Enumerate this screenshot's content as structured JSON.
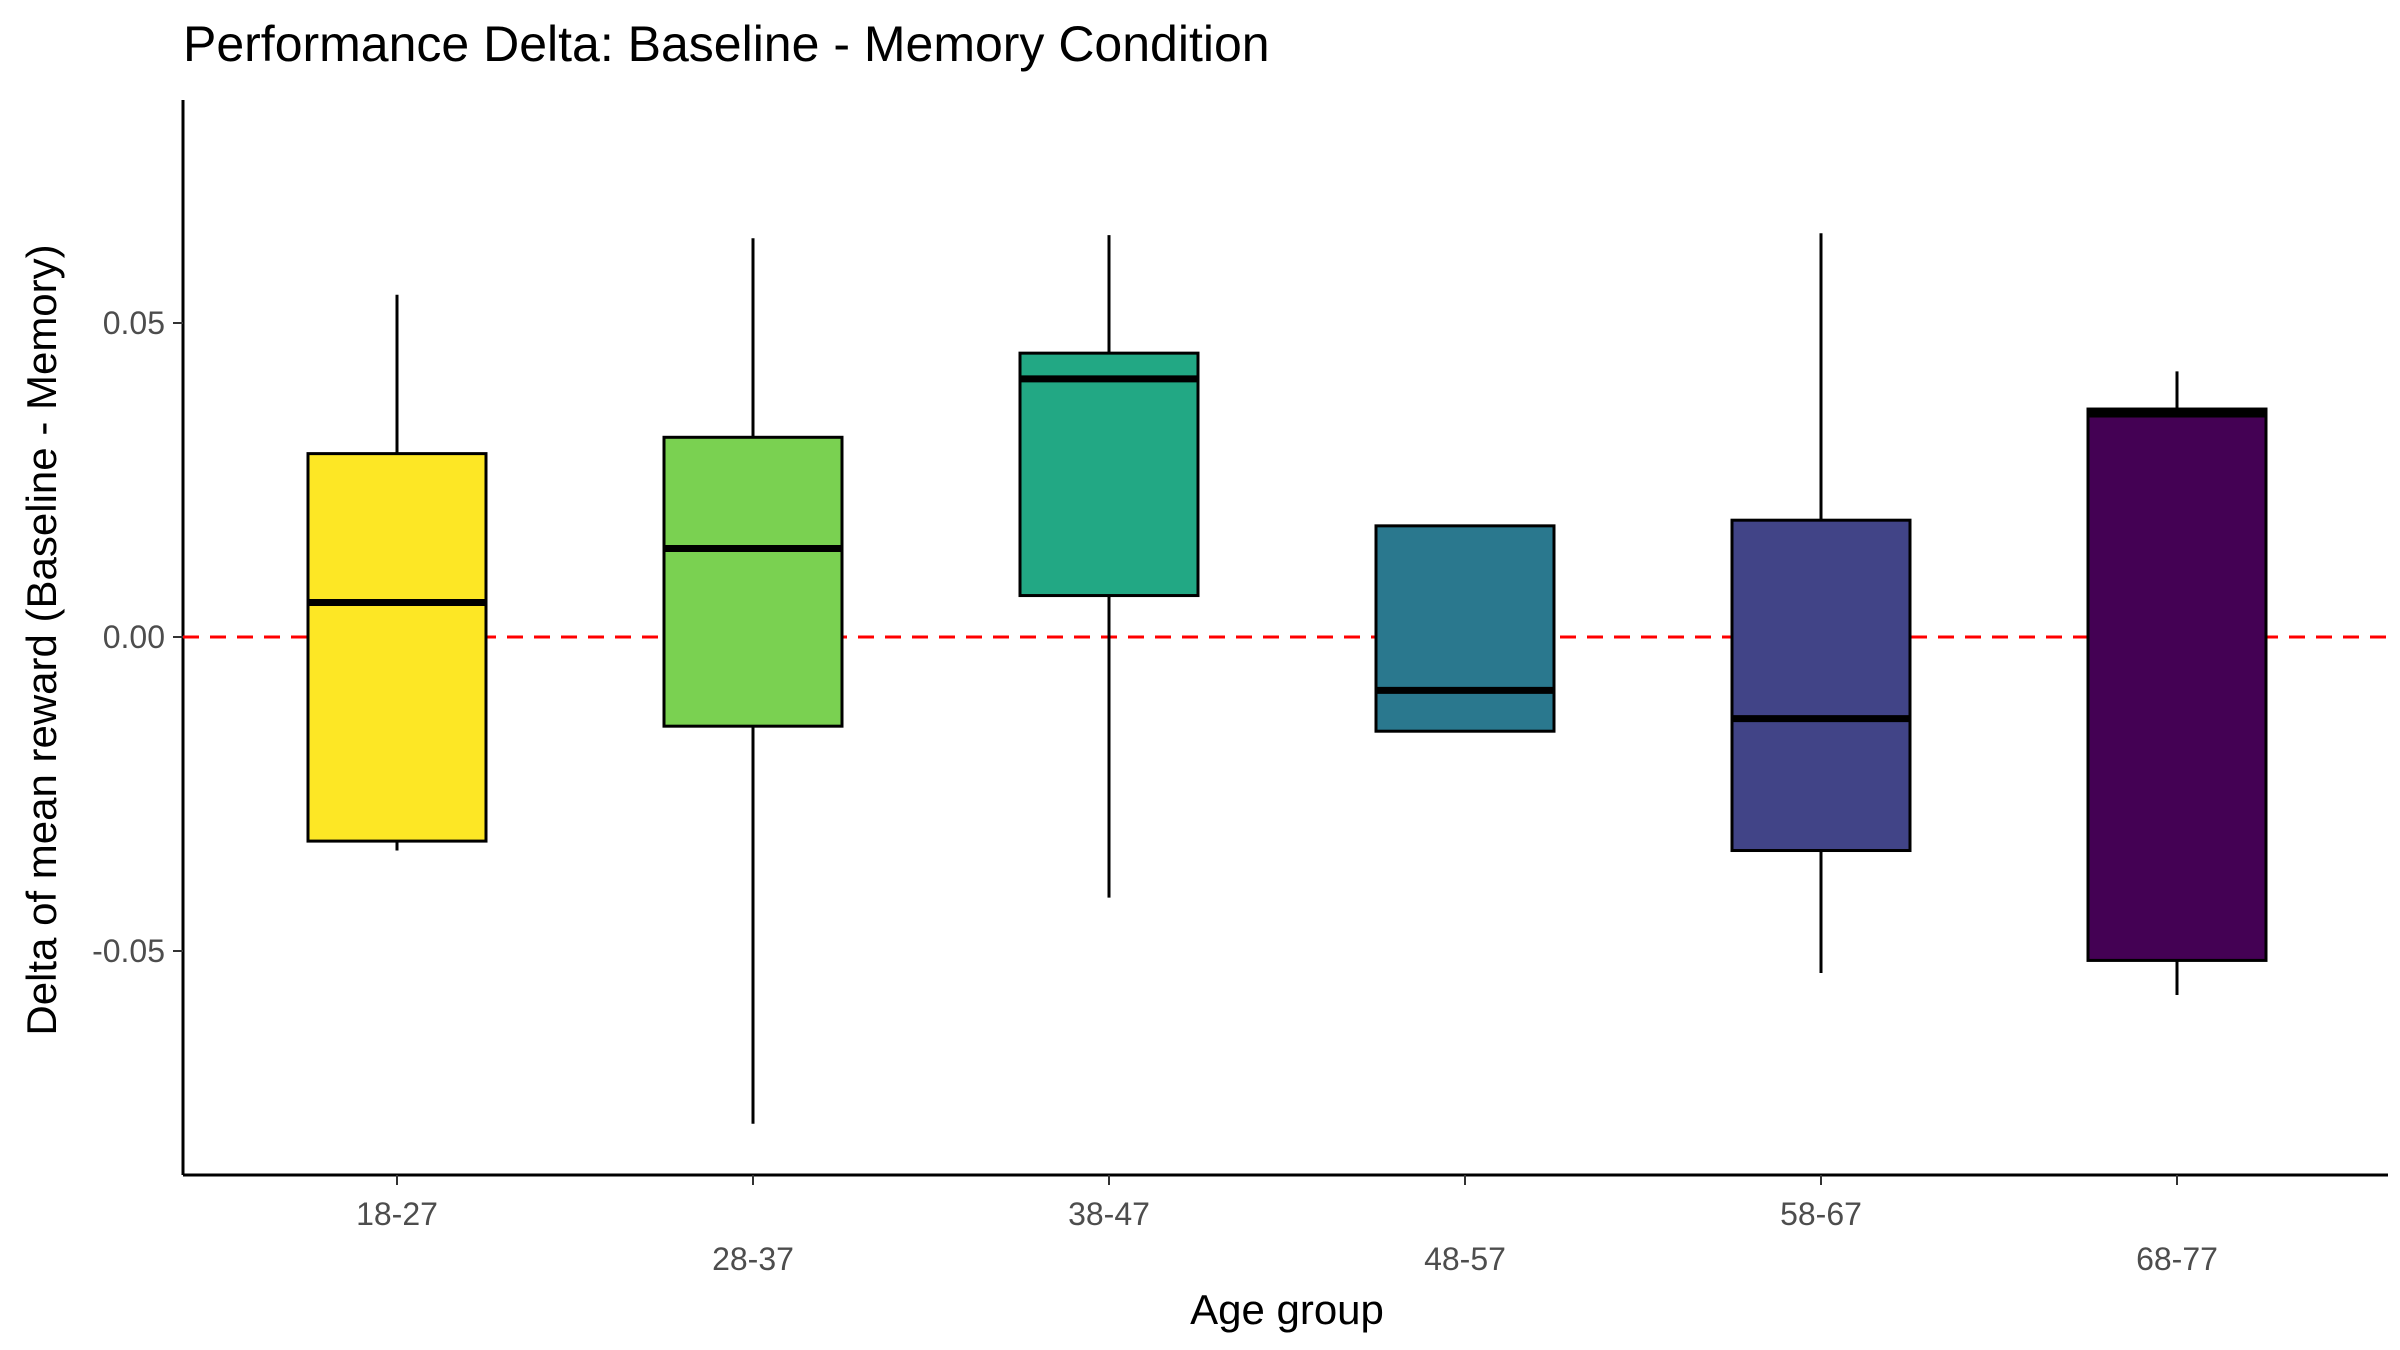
{
  "chart_data": {
    "type": "boxplot",
    "title": "Performance Delta: Baseline - Memory Condition",
    "xlabel": "Age group",
    "ylabel": "Delta of mean reward (Baseline - Memory)",
    "ylim": [
      -0.085,
      0.085
    ],
    "y_ticks": [
      0.05,
      0.0,
      -0.05
    ],
    "y_tick_labels": [
      "0.05",
      "0.00",
      "-0.05"
    ],
    "grid": false,
    "legend": "none",
    "reference_line": {
      "y": 0.0,
      "color": "#ff0000",
      "style": "dashed"
    },
    "categories": [
      "18-27",
      "28-37",
      "38-47",
      "48-57",
      "58-67",
      "68-77"
    ],
    "boxes": [
      {
        "category": "18-27",
        "whisker_low": -0.034,
        "q1": -0.0325,
        "median": 0.0055,
        "q3": 0.0292,
        "whisker_high": 0.0545,
        "color": "#fde725"
      },
      {
        "category": "28-37",
        "whisker_low": -0.0775,
        "q1": -0.0142,
        "median": 0.0141,
        "q3": 0.0318,
        "whisker_high": 0.0635,
        "color": "#7ad151"
      },
      {
        "category": "38-47",
        "whisker_low": -0.0415,
        "q1": 0.0066,
        "median": 0.0411,
        "q3": 0.0452,
        "whisker_high": 0.064,
        "color": "#22a884"
      },
      {
        "category": "48-57",
        "whisker_low": -0.0152,
        "q1": -0.015,
        "median": -0.0085,
        "q3": 0.0177,
        "whisker_high": 0.0177,
        "color": "#2a788e"
      },
      {
        "category": "58-67",
        "whisker_low": -0.0535,
        "q1": -0.034,
        "median": -0.013,
        "q3": 0.0186,
        "whisker_high": 0.0643,
        "color": "#414487"
      },
      {
        "category": "68-77",
        "whisker_low": -0.057,
        "q1": -0.0515,
        "median": 0.0355,
        "q3": 0.0363,
        "whisker_high": 0.0423,
        "color": "#440154"
      }
    ]
  }
}
